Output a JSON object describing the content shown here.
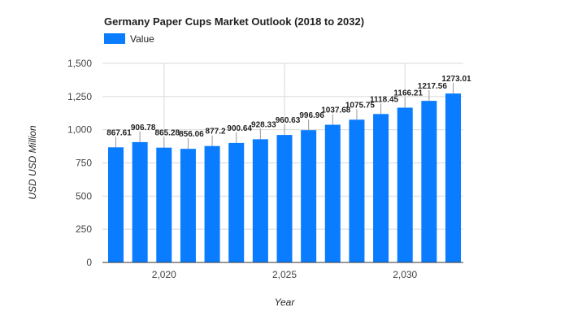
{
  "chart_data": {
    "type": "bar",
    "title": "Germany Paper Cups Market Outlook (2018 to 2032)",
    "xlabel": "Year",
    "ylabel": "USD USD Million",
    "legend": {
      "position": "top-left",
      "entries": [
        "Value"
      ]
    },
    "series": [
      {
        "name": "Value",
        "color": "#0a7cff",
        "x": [
          2018,
          2019,
          2020,
          2021,
          2022,
          2023,
          2024,
          2025,
          2026,
          2027,
          2028,
          2029,
          2030,
          2031,
          2032
        ],
        "values": [
          867.61,
          906.78,
          865.28,
          856.06,
          877.2,
          900.64,
          928.33,
          960.63,
          996.96,
          1037.68,
          1075.75,
          1118.45,
          1166.21,
          1217.56,
          1273.01
        ],
        "labels": [
          "867.61",
          "906.78",
          "865.28",
          "856.06",
          "877.2",
          "900.64",
          "928.33",
          "960.63",
          "996.96",
          "1037.68",
          "1075.75",
          "1118.45",
          "1166.21",
          "1217.56",
          "1273.01"
        ]
      }
    ],
    "ylim": [
      0,
      1500
    ],
    "yticks": [
      0,
      250,
      500,
      750,
      1000,
      1250,
      1500
    ],
    "ytick_labels": [
      "0",
      "250",
      "500",
      "750",
      "1,000",
      "1,250",
      "1,500"
    ],
    "xticks": [
      2020,
      2025,
      2030
    ],
    "xtick_labels": [
      "2,020",
      "2,025",
      "2,030"
    ],
    "grid": true
  }
}
